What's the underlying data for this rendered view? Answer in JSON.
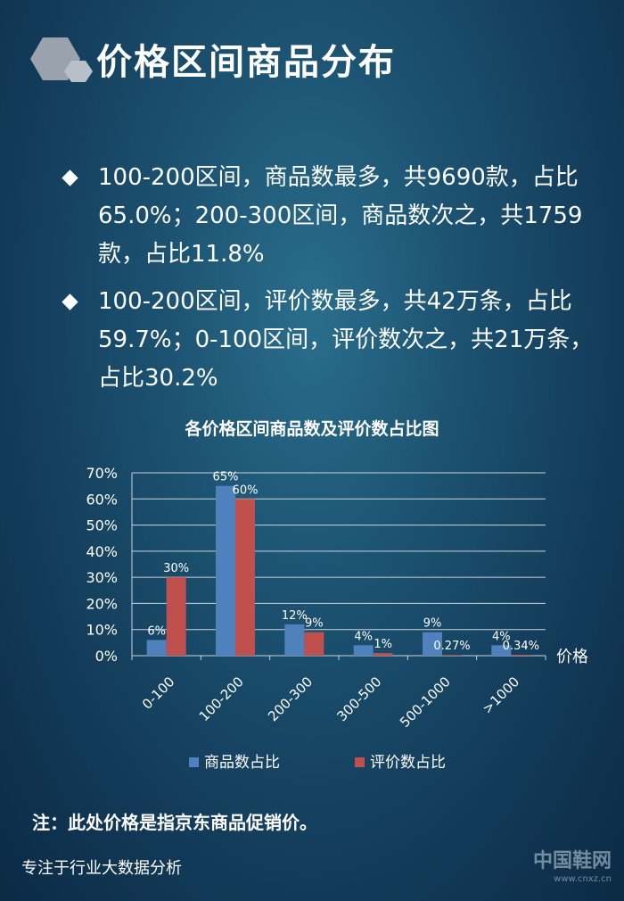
{
  "header": {
    "title": "价格区间商品分布"
  },
  "bullets": [
    "100-200区间，商品数最多，共9690款，占比65.0%；200-300区间，商品数次之，共1759款，占比11.8%",
    "100-200区间，评价数最多，共42万条，占比59.7%；0-100区间，评价数次之，共21万条，占比30.2%"
  ],
  "chart_data": {
    "type": "bar",
    "title": "各价格区间商品数及评价数占比图",
    "xlabel": "价格",
    "ylabel": "",
    "categories": [
      "0-100",
      "100-200",
      "200-300",
      "300-500",
      "500-1000",
      ">1000"
    ],
    "series": [
      {
        "name": "商品数占比",
        "values": [
          6,
          65,
          12,
          4,
          9,
          4
        ],
        "labels": [
          "6%",
          "65%",
          "12%",
          "4%",
          "9%",
          "4%"
        ],
        "color": "#4f81bd"
      },
      {
        "name": "评价数占比",
        "values": [
          30,
          60,
          9,
          1,
          0.27,
          0.34
        ],
        "labels": [
          "30%",
          "60%",
          "9%",
          "1%",
          "0.27%",
          "0.34%"
        ],
        "color": "#c0504d"
      }
    ],
    "ylim": [
      0,
      70
    ],
    "yticks": [
      "0%",
      "10%",
      "20%",
      "30%",
      "40%",
      "50%",
      "60%",
      "70%"
    ],
    "grid": true,
    "legend": "bottom"
  },
  "note": "注：此处价格是指京东商品促销价。",
  "footer": "专注于行业大数据分析",
  "watermark": {
    "text": "中国鞋网",
    "url": "www.cnxz.cn"
  }
}
